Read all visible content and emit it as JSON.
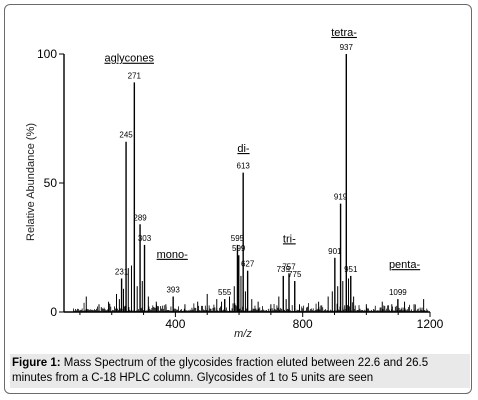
{
  "chart_data": {
    "type": "bar",
    "xlabel": "m/z",
    "ylabel": "Relative Abundance (%)",
    "xlim": [
      50,
      1200
    ],
    "ylim": [
      0,
      100
    ],
    "x_ticks": [
      400,
      800,
      1200
    ],
    "y_ticks": [
      0,
      50,
      100
    ],
    "labeled_peaks": [
      {
        "label": "231",
        "x": 231,
        "y": 13
      },
      {
        "label": "245",
        "x": 245,
        "y": 66
      },
      {
        "label": "271",
        "x": 271,
        "y": 89
      },
      {
        "label": "289",
        "x": 289,
        "y": 34
      },
      {
        "label": "303",
        "x": 303,
        "y": 26
      },
      {
        "label": "393",
        "x": 393,
        "y": 6
      },
      {
        "label": "555",
        "x": 555,
        "y": 5
      },
      {
        "label": "595",
        "x": 595,
        "y": 26
      },
      {
        "label": "613",
        "x": 613,
        "y": 54
      },
      {
        "label": "599",
        "x": 599,
        "y": 22
      },
      {
        "label": "627",
        "x": 627,
        "y": 16
      },
      {
        "label": "739",
        "x": 739,
        "y": 14
      },
      {
        "label": "757",
        "x": 757,
        "y": 15
      },
      {
        "label": "775",
        "x": 775,
        "y": 12
      },
      {
        "label": "901",
        "x": 901,
        "y": 21
      },
      {
        "label": "919",
        "x": 919,
        "y": 42
      },
      {
        "label": "937",
        "x": 937,
        "y": 100
      },
      {
        "label": "951",
        "x": 951,
        "y": 14
      },
      {
        "label": "1099",
        "x": 1099,
        "y": 5
      }
    ],
    "minor_peaks": [
      [
        120,
        6
      ],
      [
        160,
        3
      ],
      [
        190,
        4
      ],
      [
        215,
        7
      ],
      [
        224,
        5
      ],
      [
        237,
        9
      ],
      [
        252,
        17
      ],
      [
        262,
        18
      ],
      [
        280,
        10
      ],
      [
        296,
        12
      ],
      [
        315,
        6
      ],
      [
        340,
        4
      ],
      [
        370,
        3
      ],
      [
        430,
        3
      ],
      [
        470,
        4
      ],
      [
        500,
        7
      ],
      [
        530,
        5
      ],
      [
        545,
        4
      ],
      [
        570,
        6
      ],
      [
        585,
        10
      ],
      [
        606,
        14
      ],
      [
        620,
        8
      ],
      [
        640,
        5
      ],
      [
        660,
        4
      ],
      [
        700,
        3
      ],
      [
        725,
        6
      ],
      [
        748,
        5
      ],
      [
        790,
        3
      ],
      [
        850,
        4
      ],
      [
        880,
        6
      ],
      [
        893,
        8
      ],
      [
        910,
        10
      ],
      [
        926,
        12
      ],
      [
        944,
        13
      ],
      [
        960,
        6
      ],
      [
        1000,
        3
      ],
      [
        1050,
        4
      ],
      [
        1080,
        3
      ],
      [
        1120,
        4
      ],
      [
        1150,
        3
      ],
      [
        1180,
        5
      ]
    ],
    "group_labels": [
      {
        "label": "aglycones",
        "x": 255,
        "y": 97
      },
      {
        "label": "mono-",
        "x": 390,
        "y": 21
      },
      {
        "label": "di-",
        "x": 614,
        "y": 62
      },
      {
        "label": "tri-",
        "x": 758,
        "y": 27
      },
      {
        "label": "tetra-",
        "x": 930,
        "y": 107
      },
      {
        "label": "penta-",
        "x": 1120,
        "y": 17
      }
    ]
  },
  "caption": {
    "prefix": "Figure 1:",
    "text": " Mass Spectrum of the glycosides fraction eluted between 22.6 and 26.5 minutes from a C-18 HPLC column. Glycosides of 1 to 5 units are seen"
  }
}
